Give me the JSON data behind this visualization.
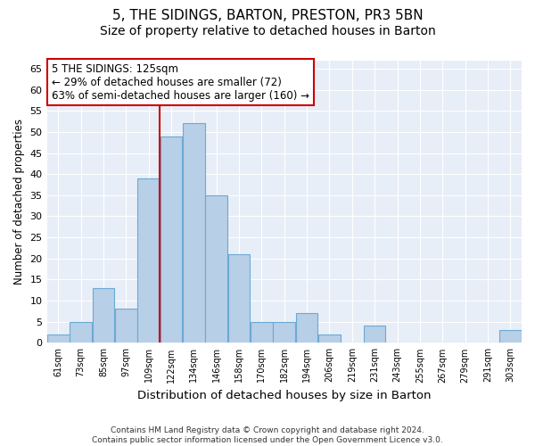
{
  "title1": "5, THE SIDINGS, BARTON, PRESTON, PR3 5BN",
  "title2": "Size of property relative to detached houses in Barton",
  "xlabel": "Distribution of detached houses by size in Barton",
  "ylabel": "Number of detached properties",
  "categories": [
    "61sqm",
    "73sqm",
    "85sqm",
    "97sqm",
    "109sqm",
    "122sqm",
    "134sqm",
    "146sqm",
    "158sqm",
    "170sqm",
    "182sqm",
    "194sqm",
    "206sqm",
    "219sqm",
    "231sqm",
    "243sqm",
    "255sqm",
    "267sqm",
    "279sqm",
    "291sqm",
    "303sqm"
  ],
  "values": [
    2,
    5,
    13,
    8,
    39,
    49,
    52,
    35,
    21,
    5,
    5,
    7,
    2,
    0,
    4,
    0,
    0,
    0,
    0,
    0,
    3
  ],
  "bar_color": "#b8cfe8",
  "bar_edge_color": "#6aaad4",
  "ylim": [
    0,
    67
  ],
  "yticks": [
    0,
    5,
    10,
    15,
    20,
    25,
    30,
    35,
    40,
    45,
    50,
    55,
    60,
    65
  ],
  "property_bin_index": 5,
  "vline_color": "#cc0000",
  "annotation_text": "5 THE SIDINGS: 125sqm\n← 29% of detached houses are smaller (72)\n63% of semi-detached houses are larger (160) →",
  "annotation_box_color": "#ffffff",
  "annotation_box_edge": "#cc0000",
  "background_color": "#e8eef7",
  "footer_text": "Contains HM Land Registry data © Crown copyright and database right 2024.\nContains public sector information licensed under the Open Government Licence v3.0.",
  "title1_fontsize": 11,
  "title2_fontsize": 10,
  "xlabel_fontsize": 9.5,
  "ylabel_fontsize": 8.5,
  "annotation_fontsize": 8.5,
  "footer_fontsize": 6.5
}
